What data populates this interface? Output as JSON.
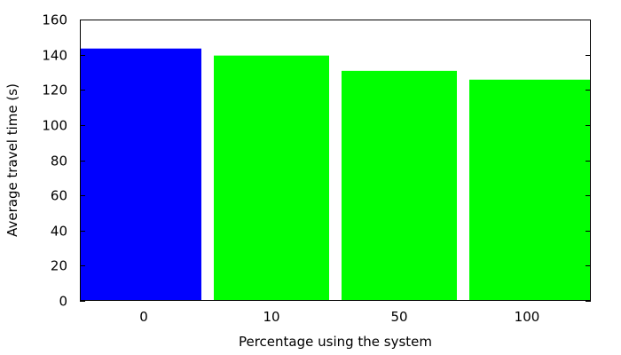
{
  "chart_data": {
    "type": "bar",
    "title": "",
    "xlabel": "Percentage using the system",
    "ylabel": "Average travel time (s)",
    "categories": [
      "0",
      "10",
      "50",
      "100"
    ],
    "values": [
      143.5,
      139.5,
      130.8,
      125.8
    ],
    "bar_colors": [
      "#0000ff",
      "#00ff00",
      "#00ff00",
      "#00ff00"
    ],
    "ylim": [
      0,
      160
    ],
    "yticks": [
      0,
      20,
      40,
      60,
      80,
      100,
      120,
      140,
      160
    ],
    "grid": false,
    "legend": "none"
  }
}
